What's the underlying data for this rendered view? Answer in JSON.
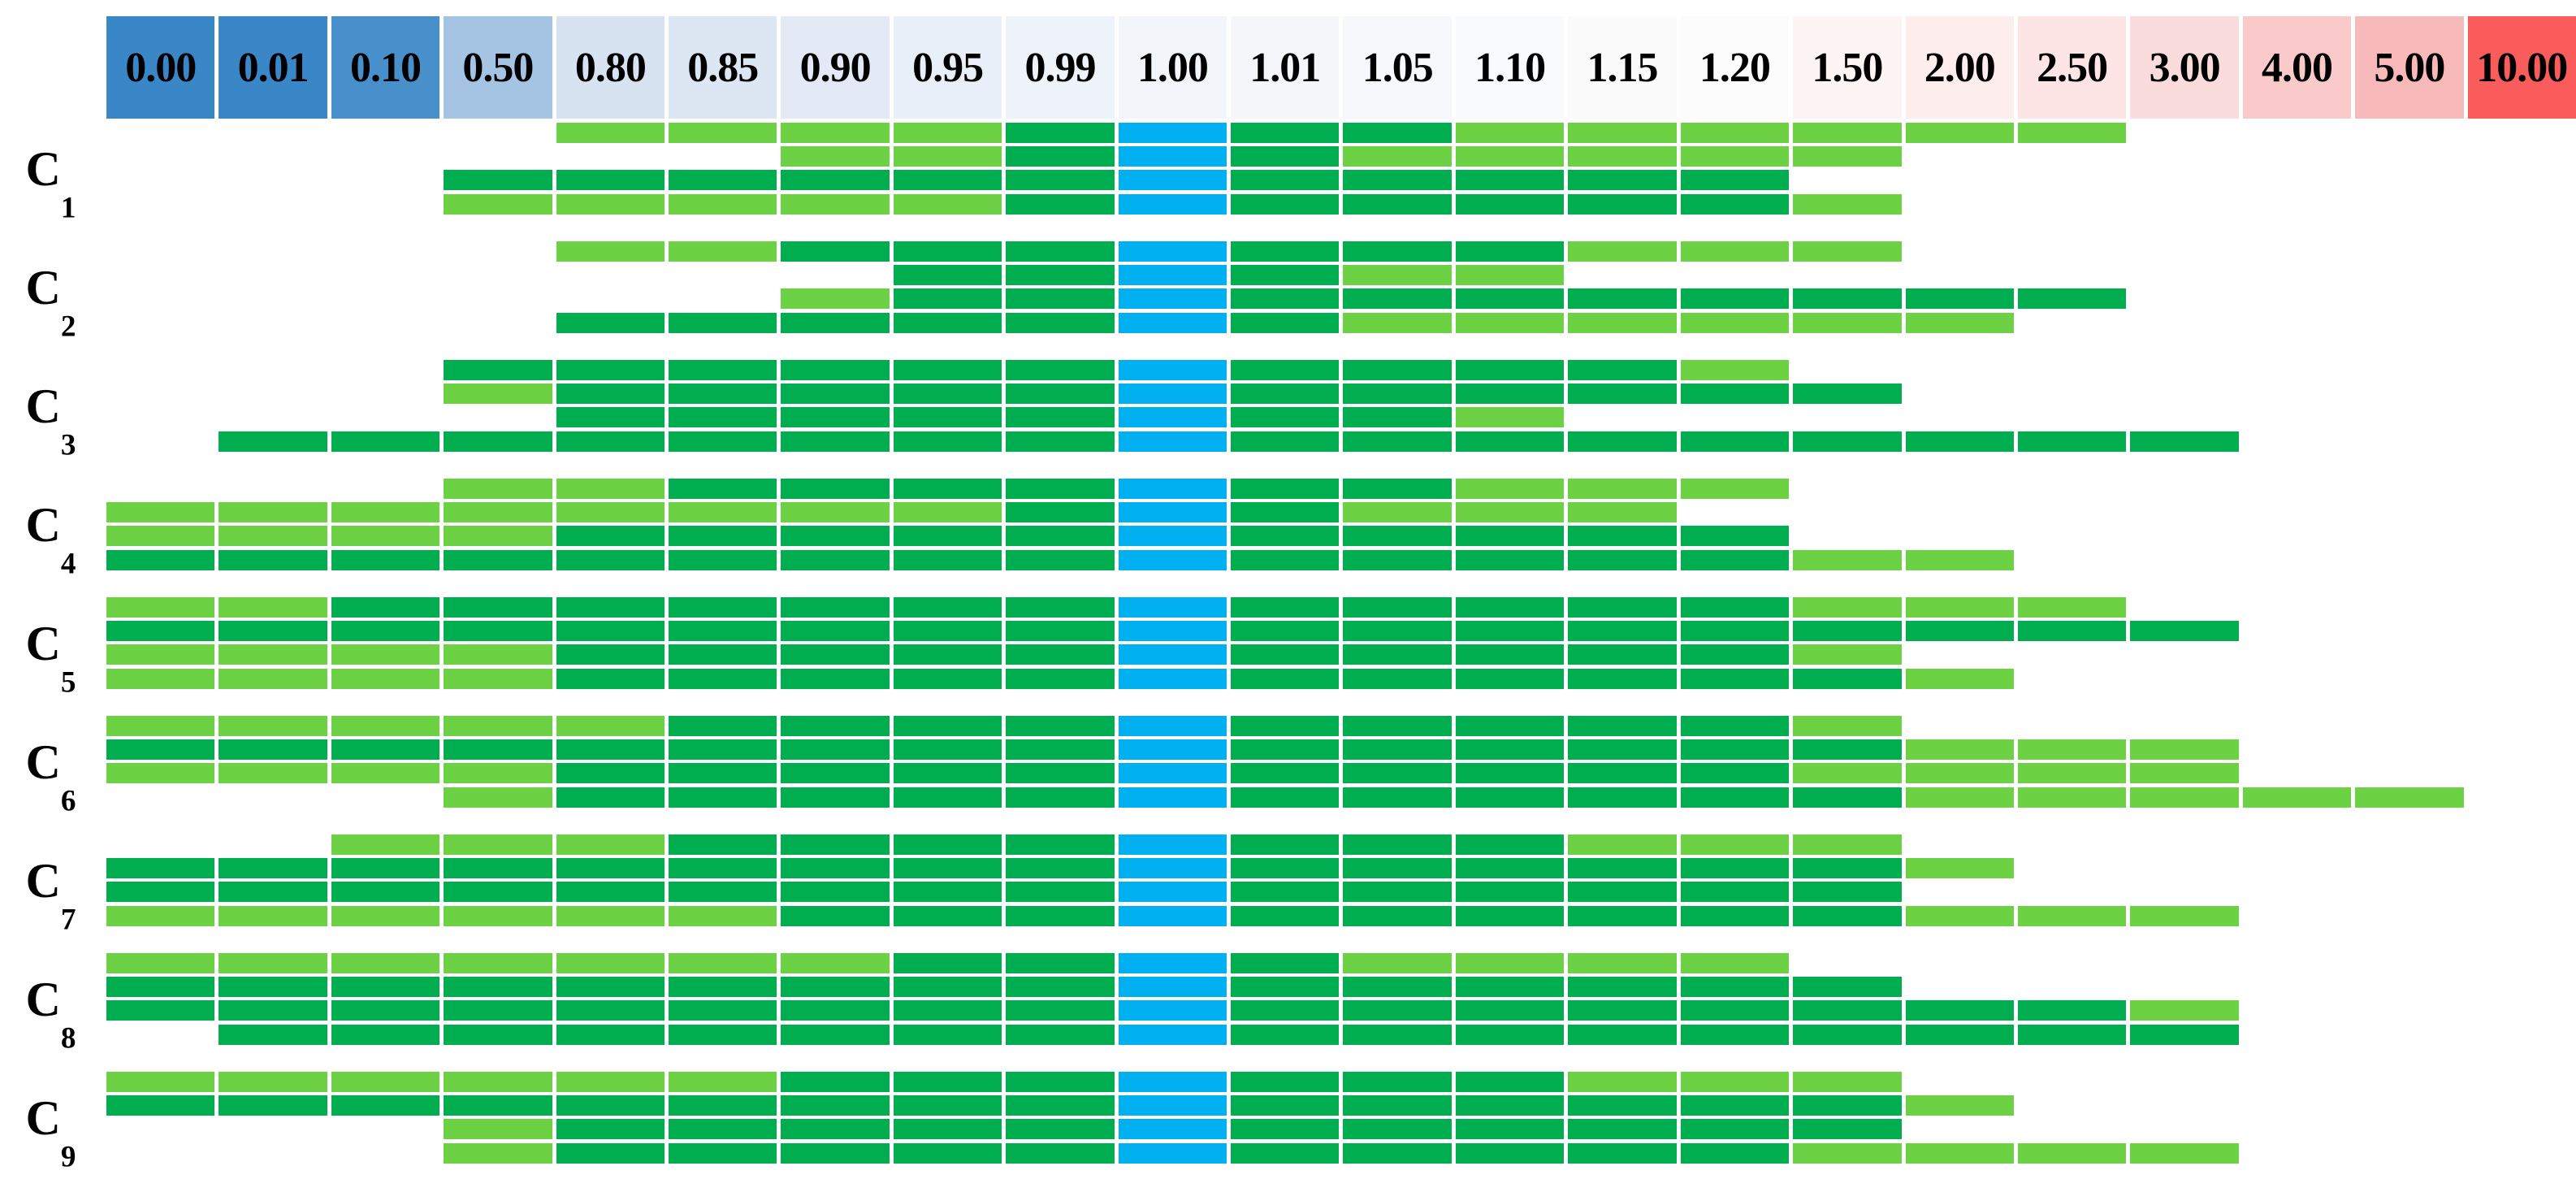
{
  "chart_data": {
    "type": "heatmap",
    "title": "",
    "xlabel": "",
    "ylabel": "",
    "legend_position": "none",
    "grid": false,
    "columns": [
      "0.00",
      "0.01",
      "0.10",
      "0.50",
      "0.80",
      "0.85",
      "0.90",
      "0.95",
      "0.99",
      "1.00",
      "1.01",
      "1.05",
      "1.10",
      "1.15",
      "1.20",
      "1.50",
      "2.00",
      "2.50",
      "3.00",
      "4.00",
      "5.00",
      "10.00"
    ],
    "header_colors": [
      "#3A87C8",
      "#3A87C8",
      "#4890CB",
      "#A5C4E4",
      "#D7E3F1",
      "#DDE7F4",
      "#E3EAF6",
      "#E9EFF8",
      "#EEF2F9",
      "#F2F5FA",
      "#F4F6FA",
      "#F7F8FB",
      "#F9FAFC",
      "#FBFBFC",
      "#FCFCFC",
      "#FDF4F4",
      "#FEEDED",
      "#FDE5E5",
      "#FBDCDC",
      "#FACACA",
      "#F7B9B9",
      "#FA5B5B"
    ],
    "cell_colors": {
      "L": "#6CD143",
      "D": "#00AE4F",
      "C": "#00B0F0",
      ".": ""
    },
    "cell_legend": {
      "L": "light-green",
      "D": "dark-green",
      "C": "highlight-cyan",
      ".": "empty"
    },
    "highlight_column": "1.00",
    "rows": [
      {
        "label": "C",
        "subscript": "1",
        "bars": [
          "....LLLLDCDDLLLLLL....",
          "......LLDCDLLLLL......",
          "...DDDDDDCDDDDD.......",
          "...LLLLLDCDDDDDL......"
        ]
      },
      {
        "label": "C",
        "subscript": "2",
        "bars": [
          "....LLDDDCDDDLLL......",
          ".......DDCDLL.........",
          "......LDDCDDDDDDDD....",
          "....DDDDDCDLLLLLL....."
        ]
      },
      {
        "label": "C",
        "subscript": "3",
        "bars": [
          "...DDDDDDCDDDDL.......",
          "...LDDDDDCDDDDDD......",
          "....DDDDDCDDL.........",
          ".DDDDDDDDCDDDDDDDDD..."
        ]
      },
      {
        "label": "C",
        "subscript": "4",
        "bars": [
          "...LLDDDDCDDLLL.......",
          "LLLLLLLLDCDLLL........",
          "LLLLDDDDDCDDDDD.......",
          "DDDDDDDDDCDDDDDLL....."
        ]
      },
      {
        "label": "C",
        "subscript": "5",
        "bars": [
          "LLDDDDDDDCDDDDDLLL....",
          "DDDDDDDDDCDDDDDDDDD...",
          "LLLLDDDDDCDDDDDL......",
          "LLLLDDDDDCDDDDDDL....."
        ]
      },
      {
        "label": "C",
        "subscript": "6",
        "bars": [
          "LLLLLDDDDCDDDDDL......",
          "DDDDDDDDDCDDDDDDLLL...",
          "LLLLDDDDDCDDDDDLLLL...",
          "...LDDDDDCDDDDDDLLLLL."
        ]
      },
      {
        "label": "C",
        "subscript": "7",
        "bars": [
          "..LLLDDDDCDDDLLL......",
          "DDDDDDDDDCDDDDDDL.....",
          "DDDDDDDDDCDDDDDD......",
          "LLLLLLDDDCDDDDDDLLL..."
        ]
      },
      {
        "label": "C",
        "subscript": "8",
        "bars": [
          "LLLLLLLDDCDLLLL.......",
          "DDDDDDDDDCDDDDDD......",
          "DDDDDDDDDCDDDDDDDDL...",
          ".DDDDDDDDCDDDDDDDDD..."
        ]
      },
      {
        "label": "C",
        "subscript": "9",
        "bars": [
          "LLLLLLDDDCDDDLLL......",
          "DDDDDDDDDCDDDDDDL.....",
          "...LDDDDDCDDDDDD......",
          "...LDDDDDCDDDDDLLLL..."
        ]
      }
    ]
  }
}
